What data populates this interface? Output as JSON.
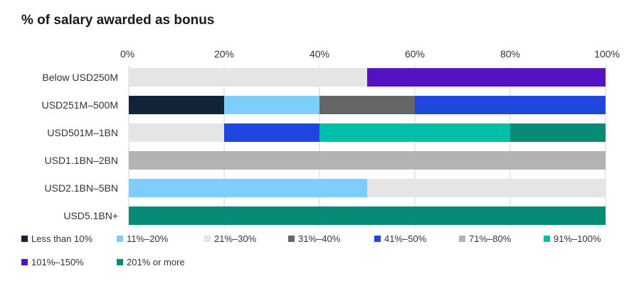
{
  "chart_data": {
    "type": "bar",
    "orientation": "horizontal",
    "stacked": true,
    "title": "% of salary awarded as bonus",
    "xlabel": "",
    "ylabel": "",
    "xlim": [
      0,
      100
    ],
    "x_ticks": [
      "0%",
      "20%",
      "40%",
      "60%",
      "80%",
      "100%"
    ],
    "categories": [
      "Below USD250M",
      "USD251M–500M",
      "USD501M–1BN",
      "USD1.1BN–2BN",
      "USD2.1BN–5BN",
      "USD5.1BN+"
    ],
    "series": [
      {
        "name": "Less than 10%",
        "color": "#13233a",
        "values": [
          0,
          20,
          0,
          0,
          0,
          0
        ]
      },
      {
        "name": "11%–20%",
        "color": "#7dcefa",
        "values": [
          0,
          20,
          0,
          0,
          50,
          0
        ]
      },
      {
        "name": "21%–30%",
        "color": "#e5e5e5",
        "values": [
          50,
          0,
          20,
          0,
          50,
          0
        ]
      },
      {
        "name": "31%–40%",
        "color": "#666666",
        "values": [
          0,
          20,
          0,
          0,
          0,
          0
        ]
      },
      {
        "name": "41%–50%",
        "color": "#1f47e0",
        "values": [
          0,
          40,
          20,
          0,
          0,
          0
        ]
      },
      {
        "name": "71%–80%",
        "color": "#b3b3b3",
        "values": [
          0,
          0,
          0,
          100,
          0,
          0
        ]
      },
      {
        "name": "91%–100%",
        "color": "#00bfa8",
        "values": [
          0,
          0,
          40,
          0,
          0,
          0
        ]
      },
      {
        "name": "101%–150%",
        "color": "#5412c2",
        "values": [
          50,
          0,
          0,
          0,
          0,
          0
        ]
      },
      {
        "name": "201% or more",
        "color": "#078a76",
        "values": [
          0,
          0,
          20,
          0,
          0,
          100
        ]
      }
    ],
    "legend_position": "bottom",
    "grid": true
  }
}
